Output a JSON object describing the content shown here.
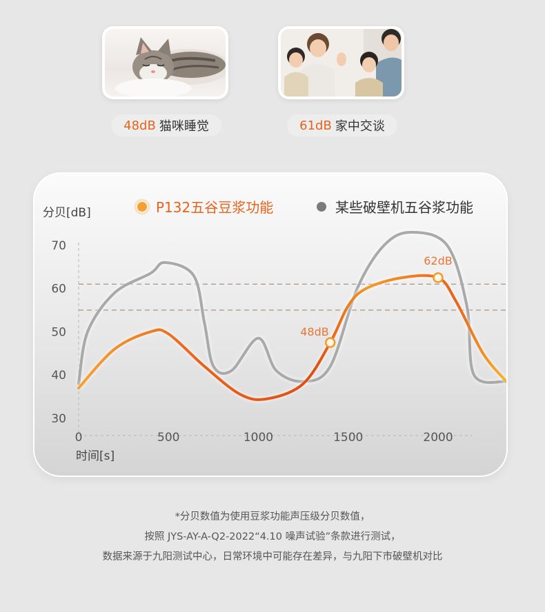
{
  "scenes": [
    {
      "db": "48dB",
      "label": "猫咪睡觉",
      "image": "sleeping-kitten-photo"
    },
    {
      "db": "61dB",
      "label": "家中交谈",
      "image": "family-talking-photo"
    }
  ],
  "colors": {
    "accent": "#e8631a",
    "accent_light": "#f6a12d",
    "series2": "#a9a9a9",
    "grid": "#b0a49a",
    "background": "#e7e7e7"
  },
  "chart_data": {
    "type": "line",
    "ylabel": "分贝[dB]",
    "xlabel": "时间[s]",
    "xlim": [
      0,
      2380
    ],
    "ylim": [
      26,
      73
    ],
    "xticks": [
      "0",
      "500",
      "1000",
      "1500",
      "2000"
    ],
    "yticks": [
      "70",
      "60",
      "50",
      "40",
      "30"
    ],
    "reference_lines": [
      61,
      55
    ],
    "series": [
      {
        "name": "P132五谷豆浆功能",
        "color": "#e8631a",
        "points": [
          [
            0,
            37
          ],
          [
            200,
            46
          ],
          [
            400,
            50
          ],
          [
            500,
            49.5
          ],
          [
            700,
            42
          ],
          [
            900,
            35.5
          ],
          [
            1050,
            34.5
          ],
          [
            1250,
            38
          ],
          [
            1400,
            47.5
          ],
          [
            1500,
            56
          ],
          [
            1600,
            60
          ],
          [
            1800,
            62.5
          ],
          [
            2000,
            62.5
          ],
          [
            2100,
            57
          ],
          [
            2250,
            45
          ],
          [
            2380,
            38.5
          ]
        ]
      },
      {
        "name": "某些破壁机五谷浆功能",
        "color": "#a9a9a9",
        "points": [
          [
            0,
            38
          ],
          [
            50,
            50
          ],
          [
            200,
            59
          ],
          [
            400,
            63.5
          ],
          [
            480,
            66
          ],
          [
            640,
            63
          ],
          [
            700,
            52
          ],
          [
            750,
            42
          ],
          [
            850,
            41
          ],
          [
            1000,
            48.5
          ],
          [
            1100,
            41
          ],
          [
            1250,
            38.5
          ],
          [
            1400,
            42
          ],
          [
            1550,
            60
          ],
          [
            1700,
            70
          ],
          [
            1850,
            73
          ],
          [
            2050,
            70
          ],
          [
            2160,
            56
          ],
          [
            2200,
            40
          ],
          [
            2380,
            38.5
          ]
        ]
      }
    ],
    "annotations": [
      {
        "x": 1400,
        "y": 47.5,
        "text": "48dB"
      },
      {
        "x": 2000,
        "y": 62.5,
        "text": "62dB"
      }
    ],
    "legend_position": "top"
  },
  "footnote": [
    "*分贝数值为使用豆浆功能声压级分贝数值，",
    "按照 JYS-AY-A-Q2-2022“4.10 噪声试验”条款进行测试，",
    "数据来源于九阳测试中心，日常环境中可能存在差异，与九阳下市破壁机对比"
  ]
}
